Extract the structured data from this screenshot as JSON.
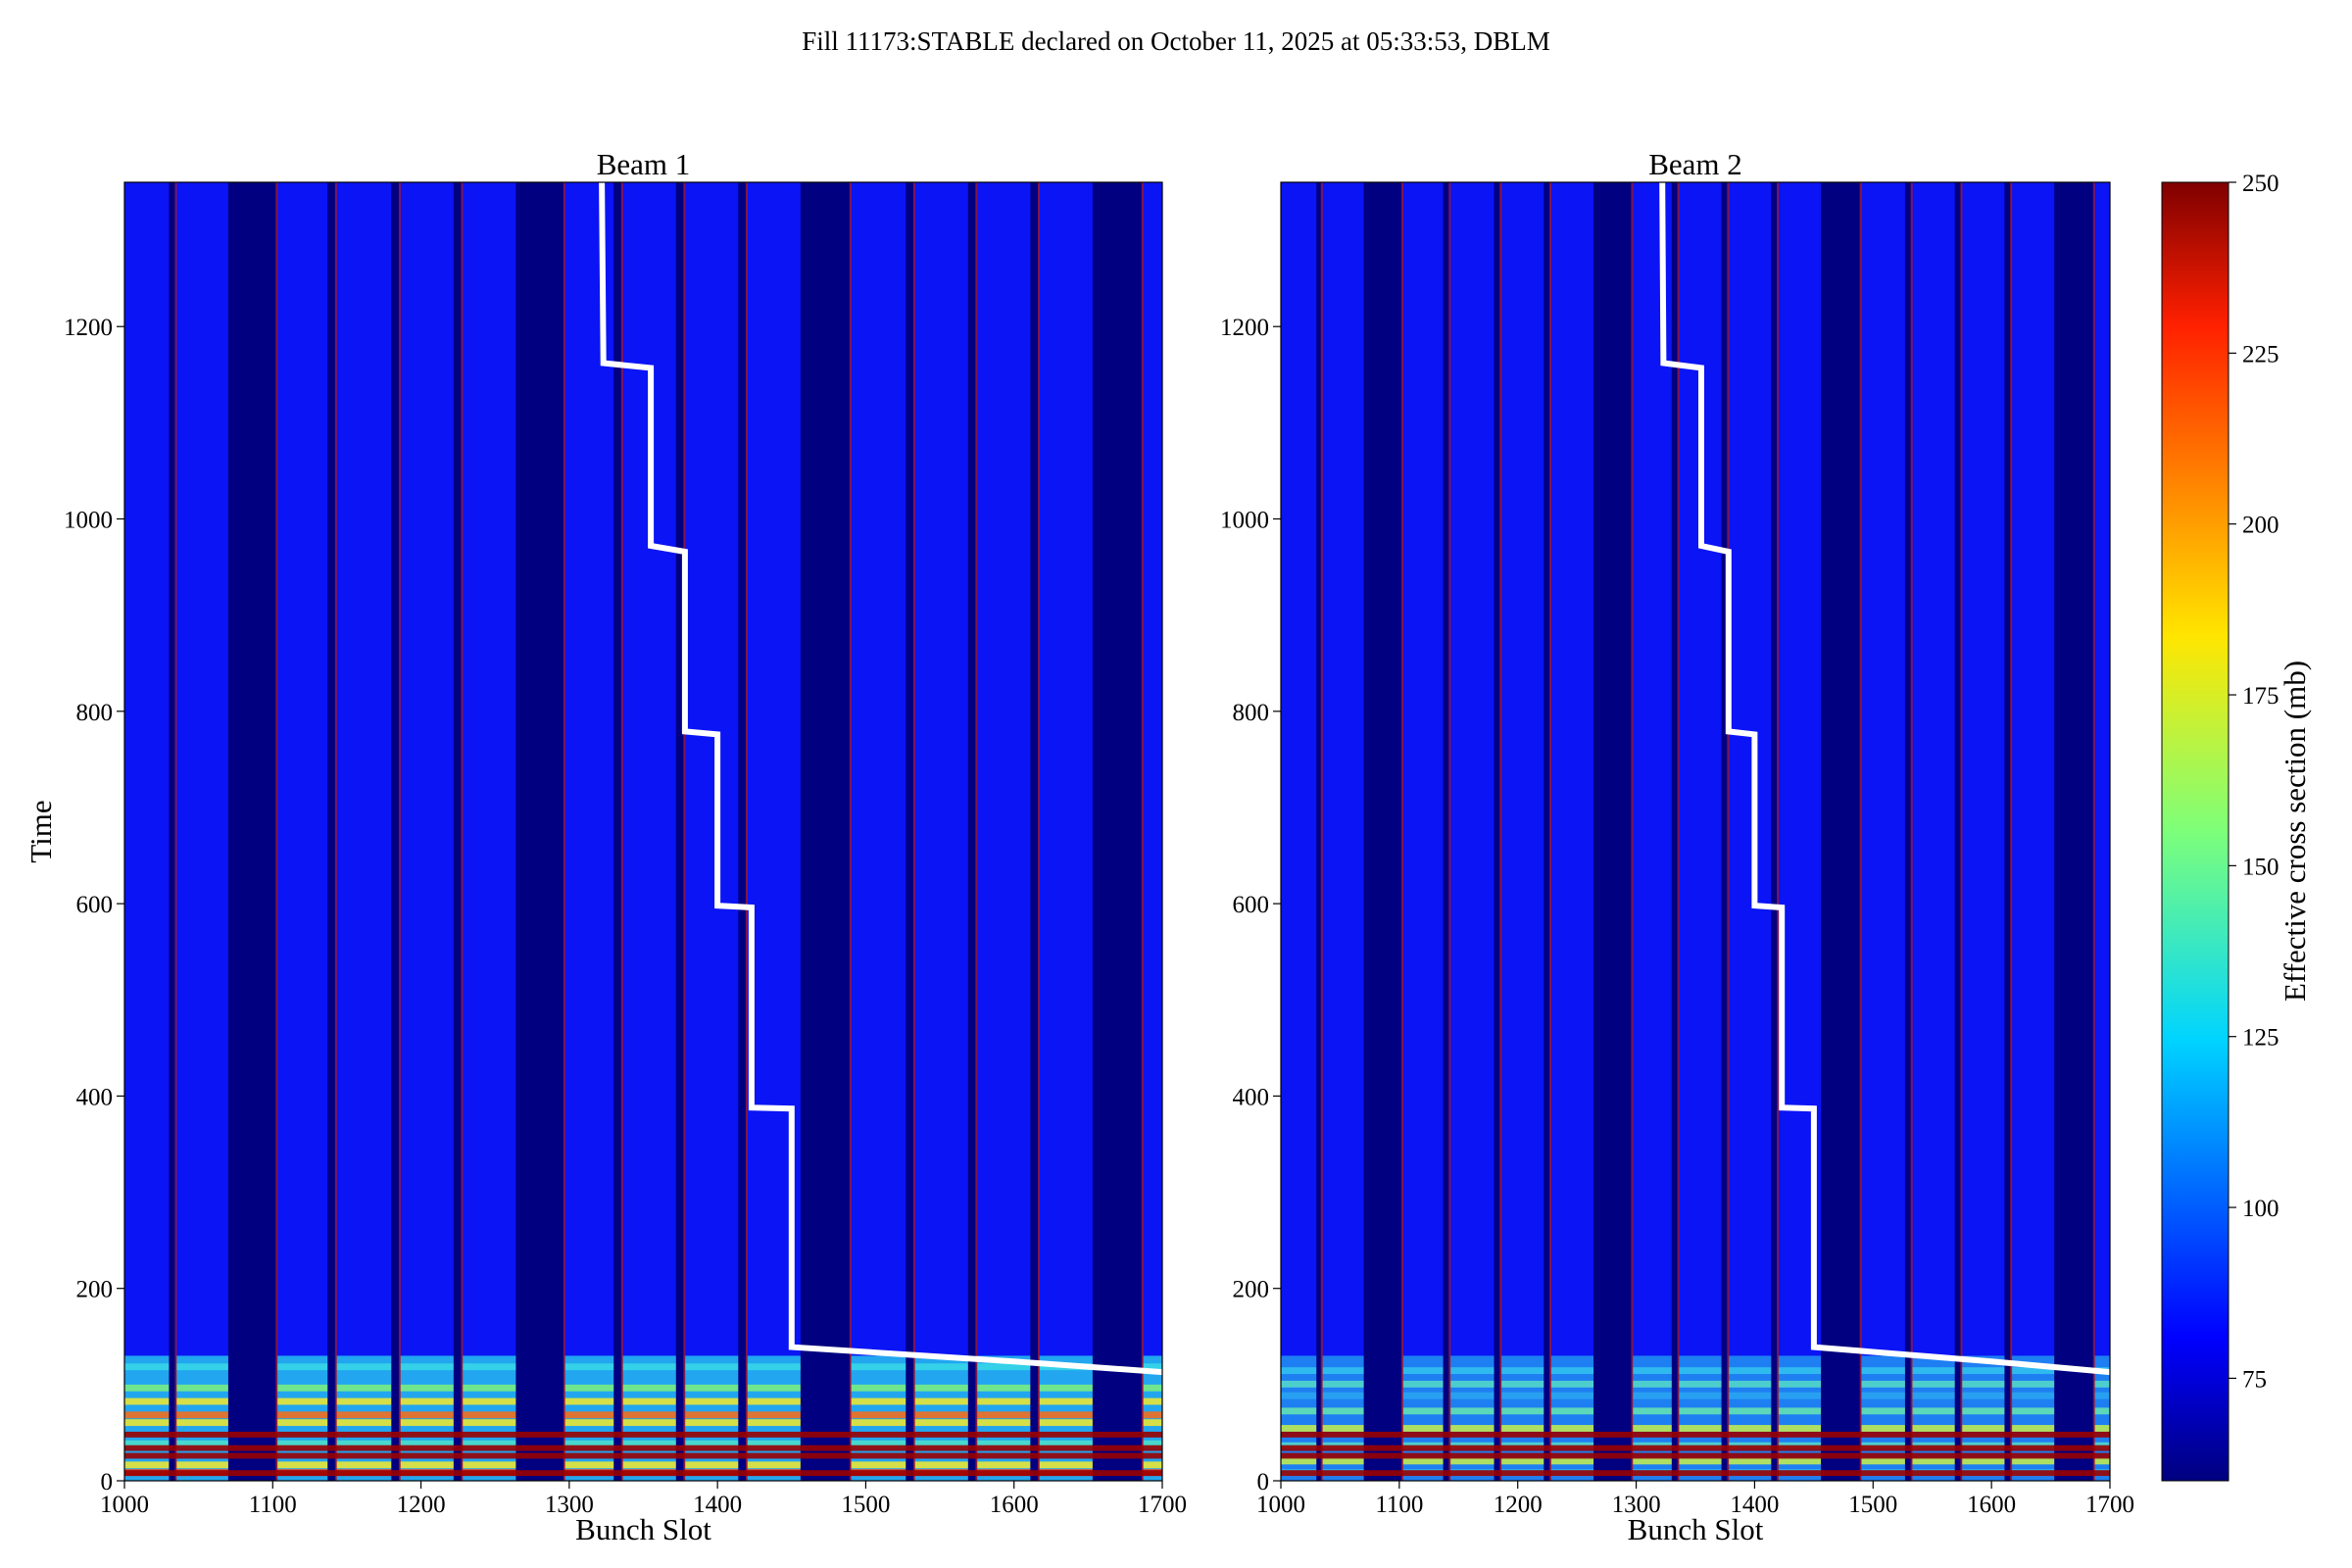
{
  "suptitle": "Fill 11173:STABLE declared on October 11, 2025 at 05:33:53, DBLM",
  "colorbar": {
    "label": "Effective cross section (mb)",
    "min": 60,
    "max": 250,
    "ticks": [
      75,
      100,
      125,
      150,
      175,
      200,
      225,
      250
    ],
    "colormap": "jet"
  },
  "chart_data": [
    {
      "type": "heatmap",
      "title": "Beam 1",
      "xlabel": "Bunch Slot",
      "ylabel": "Time",
      "xlim": [
        1000,
        1700
      ],
      "ylim": [
        0,
        1350
      ],
      "xticks": [
        1000,
        1100,
        1200,
        1300,
        1400,
        1500,
        1600,
        1700
      ],
      "yticks": [
        0,
        200,
        400,
        600,
        800,
        1000,
        1200
      ],
      "empty_slot_ranges": [
        [
          1030,
          1035
        ],
        [
          1070,
          1103
        ],
        [
          1137,
          1143
        ],
        [
          1180,
          1186
        ],
        [
          1222,
          1228
        ],
        [
          1264,
          1297
        ],
        [
          1330,
          1336
        ],
        [
          1372,
          1378
        ],
        [
          1414,
          1420
        ],
        [
          1456,
          1490
        ],
        [
          1527,
          1533
        ],
        [
          1569,
          1575
        ],
        [
          1611,
          1617
        ],
        [
          1653,
          1687
        ]
      ],
      "white_step_line": {
        "x": [
          1322,
          1323,
          1323,
          1355,
          1355,
          1378,
          1378,
          1400,
          1400,
          1423,
          1423,
          1450,
          1450,
          1600,
          1700
        ],
        "y": [
          1350,
          1162,
          1162,
          1157,
          972,
          966,
          779,
          776,
          598,
          596,
          388,
          387,
          139,
          124,
          113
        ]
      }
    },
    {
      "type": "heatmap",
      "title": "Beam 2",
      "xlabel": "Bunch Slot",
      "ylabel": "",
      "xlim": [
        1000,
        1700
      ],
      "ylim": [
        0,
        1350
      ],
      "xticks": [
        1000,
        1100,
        1200,
        1300,
        1400,
        1500,
        1600,
        1700
      ],
      "yticks": [
        0,
        200,
        400,
        600,
        800,
        1000,
        1200
      ],
      "empty_slot_ranges": [
        [
          1030,
          1035
        ],
        [
          1070,
          1103
        ],
        [
          1137,
          1143
        ],
        [
          1180,
          1186
        ],
        [
          1222,
          1228
        ],
        [
          1264,
          1297
        ],
        [
          1330,
          1336
        ],
        [
          1372,
          1378
        ],
        [
          1414,
          1420
        ],
        [
          1456,
          1490
        ],
        [
          1527,
          1533
        ],
        [
          1569,
          1575
        ],
        [
          1611,
          1617
        ],
        [
          1653,
          1687
        ]
      ],
      "white_step_line": {
        "x": [
          1322,
          1323,
          1323,
          1355,
          1355,
          1378,
          1378,
          1400,
          1400,
          1423,
          1423,
          1450,
          1450,
          1600,
          1700
        ],
        "y": [
          1350,
          1162,
          1162,
          1157,
          972,
          966,
          779,
          776,
          598,
          596,
          388,
          387,
          139,
          124,
          113
        ]
      }
    }
  ]
}
